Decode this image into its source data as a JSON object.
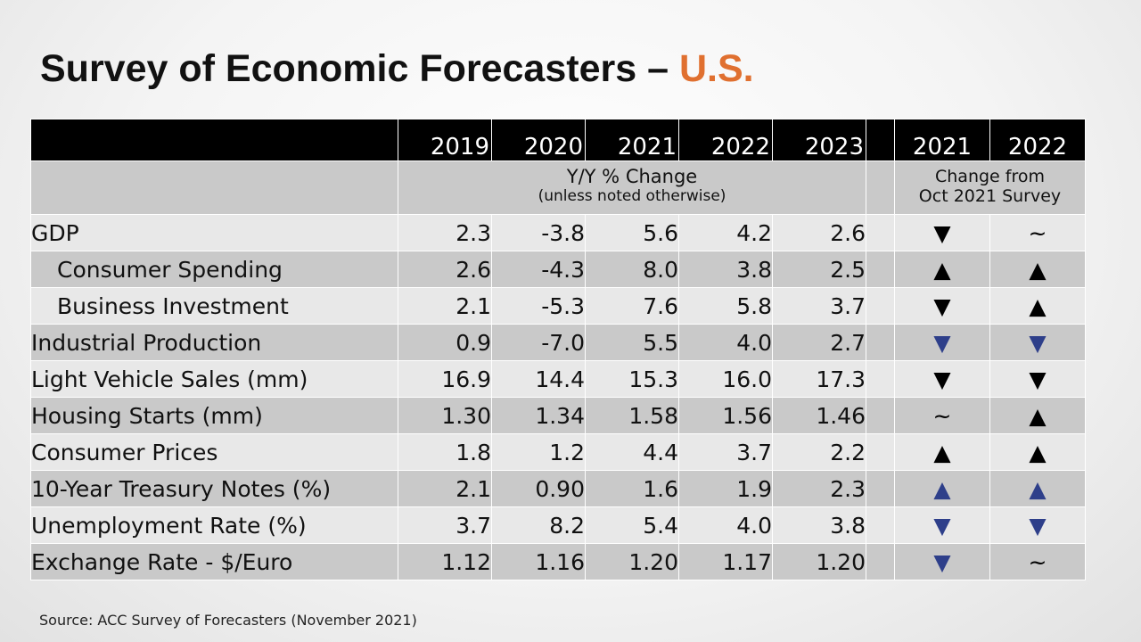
{
  "title": {
    "main": "Survey of Economic Forecasters – ",
    "accent": "U.S."
  },
  "colors": {
    "accent": "#e07030",
    "indicator_blue": "#2e3f8a",
    "header_bg": "#000000",
    "row_dark": "#c9c9c9",
    "row_light": "#e8e8e8"
  },
  "table": {
    "years": [
      "2019",
      "2020",
      "2021",
      "2022",
      "2023"
    ],
    "change_years": [
      "2021",
      "2022"
    ],
    "units_line1": "Y/Y % Change",
    "units_line2": "(unless noted otherwise)",
    "change_line1": "Change from",
    "change_line2": "Oct 2021 Survey",
    "rows": [
      {
        "label": "GDP",
        "values": [
          "2.3",
          "-3.8",
          "5.6",
          "4.2",
          "2.6"
        ],
        "change": [
          {
            "symbol": "▼",
            "color": "black"
          },
          {
            "symbol": "~",
            "color": "black"
          }
        ]
      },
      {
        "label": "Consumer Spending",
        "values": [
          "2.6",
          "-4.3",
          "8.0",
          "3.8",
          "2.5"
        ],
        "change": [
          {
            "symbol": "▲",
            "color": "black"
          },
          {
            "symbol": "▲",
            "color": "black"
          }
        ]
      },
      {
        "label": "Business Investment",
        "values": [
          "2.1",
          "-5.3",
          "7.6",
          "5.8",
          "3.7"
        ],
        "change": [
          {
            "symbol": "▼",
            "color": "black"
          },
          {
            "symbol": "▲",
            "color": "black"
          }
        ]
      },
      {
        "label": "Industrial Production",
        "values": [
          "0.9",
          "-7.0",
          "5.5",
          "4.0",
          "2.7"
        ],
        "change": [
          {
            "symbol": "▼",
            "color": "blue"
          },
          {
            "symbol": "▼",
            "color": "blue"
          }
        ]
      },
      {
        "label": "Light Vehicle Sales (mm)",
        "values": [
          "16.9",
          "14.4",
          "15.3",
          "16.0",
          "17.3"
        ],
        "change": [
          {
            "symbol": "▼",
            "color": "black"
          },
          {
            "symbol": "▼",
            "color": "black"
          }
        ]
      },
      {
        "label": "Housing Starts (mm)",
        "values": [
          "1.30",
          "1.34",
          "1.58",
          "1.56",
          "1.46"
        ],
        "change": [
          {
            "symbol": "~",
            "color": "black"
          },
          {
            "symbol": "▲",
            "color": "black"
          }
        ]
      },
      {
        "label": "Consumer Prices",
        "values": [
          "1.8",
          "1.2",
          "4.4",
          "3.7",
          "2.2"
        ],
        "change": [
          {
            "symbol": "▲",
            "color": "black"
          },
          {
            "symbol": "▲",
            "color": "black"
          }
        ]
      },
      {
        "label": "10-Year Treasury Notes (%)",
        "values": [
          "2.1",
          "0.90",
          "1.6",
          "1.9",
          "2.3"
        ],
        "change": [
          {
            "symbol": "▲",
            "color": "blue"
          },
          {
            "symbol": "▲",
            "color": "blue"
          }
        ]
      },
      {
        "label": "Unemployment Rate (%)",
        "values": [
          "3.7",
          "8.2",
          "5.4",
          "4.0",
          "3.8"
        ],
        "change": [
          {
            "symbol": "▼",
            "color": "blue"
          },
          {
            "symbol": "▼",
            "color": "blue"
          }
        ]
      },
      {
        "label": "Exchange Rate - $/Euro",
        "values": [
          "1.12",
          "1.16",
          "1.20",
          "1.17",
          "1.20"
        ],
        "change": [
          {
            "symbol": "▼",
            "color": "blue"
          },
          {
            "symbol": "~",
            "color": "black"
          }
        ]
      }
    ]
  },
  "source": "Source: ACC Survey of Forecasters (November 2021)"
}
